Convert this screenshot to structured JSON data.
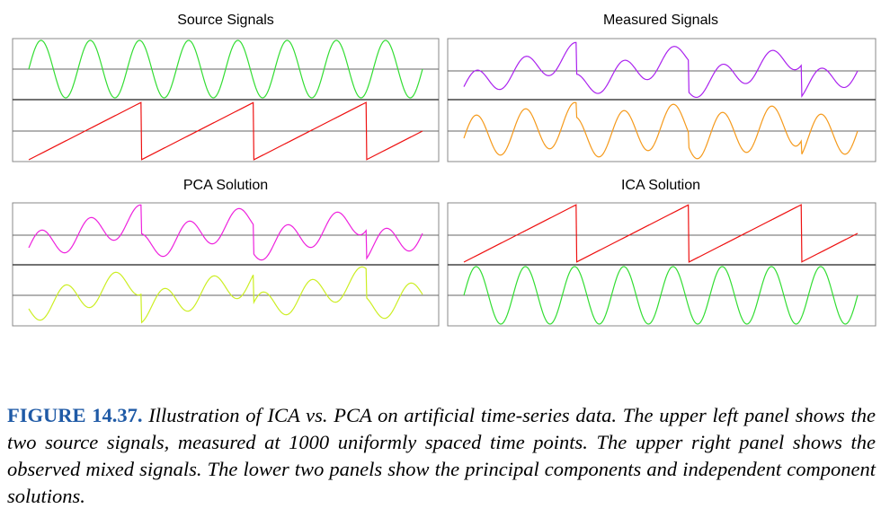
{
  "figure": {
    "panels": [
      {
        "title": "Source Signals",
        "traces": [
          {
            "kind": "sine",
            "color": "#33dd33"
          },
          {
            "kind": "sawtooth",
            "color": "#ee1111"
          }
        ]
      },
      {
        "title": "Measured Signals",
        "traces": [
          {
            "kind": "mix_a",
            "color": "#aa22ee"
          },
          {
            "kind": "mix_b",
            "color": "#f59a1c"
          }
        ]
      },
      {
        "title": "PCA Solution",
        "traces": [
          {
            "kind": "pca_1",
            "color": "#ee22dd"
          },
          {
            "kind": "pca_2",
            "color": "#ccee22"
          }
        ]
      },
      {
        "title": "ICA Solution",
        "traces": [
          {
            "kind": "sawtooth",
            "color": "#ee1111"
          },
          {
            "kind": "sine",
            "color": "#33dd33"
          }
        ]
      }
    ]
  },
  "caption": {
    "label": "FIGURE 14.37.",
    "text": "Illustration of ICA vs. PCA on artificial time-series data. The upper left panel shows the two source signals, measured at 1000 uniformly spaced time points. The upper right panel shows the observed mixed signals. The lower two panels show the principal components and independent component solutions."
  }
}
